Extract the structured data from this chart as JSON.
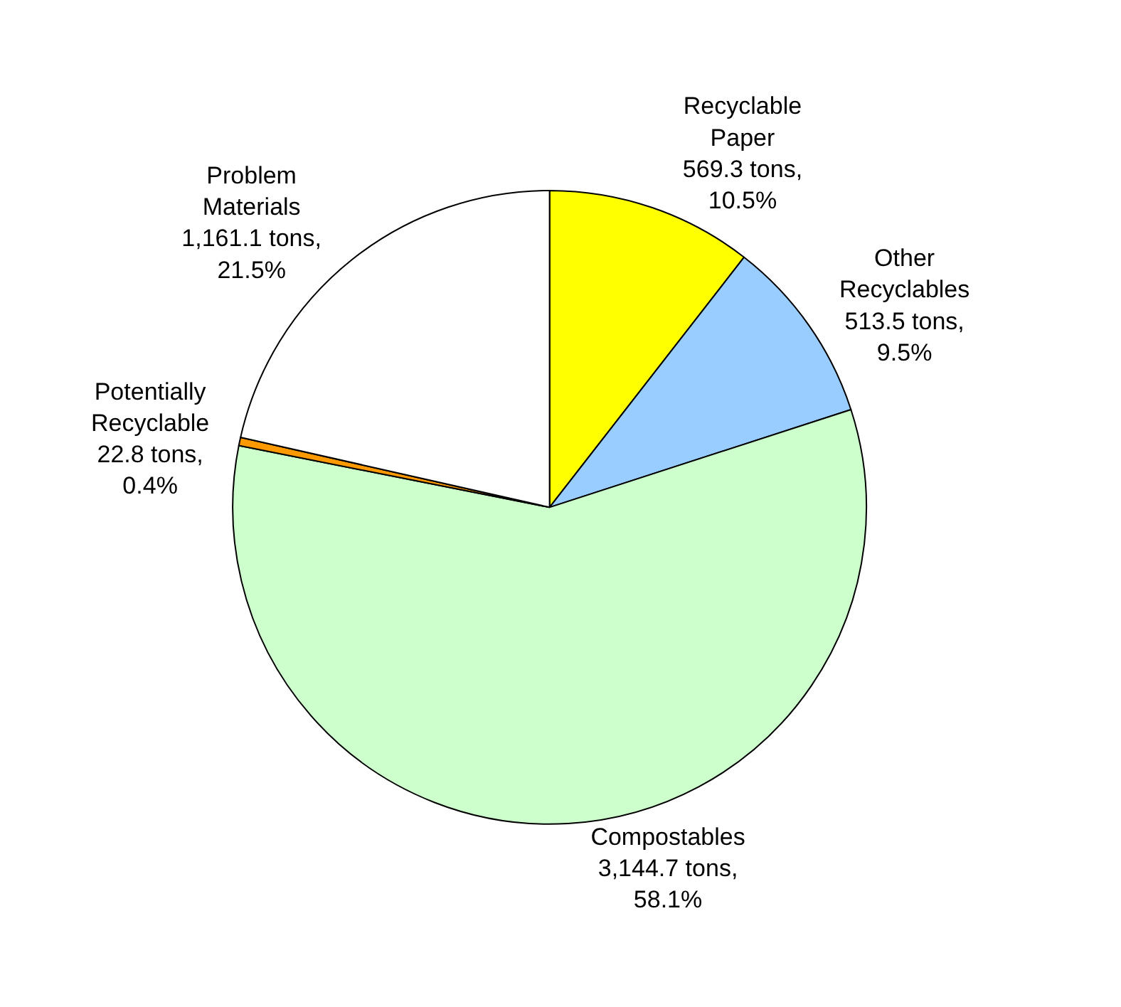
{
  "chart_data": {
    "type": "pie",
    "categories": [
      "Recyclable Paper",
      "Other Recyclables",
      "Compostables",
      "Potentially Recyclable",
      "Problem Materials"
    ],
    "values": [
      569.3,
      513.5,
      3144.7,
      22.8,
      1161.1
    ],
    "value_labels": [
      "569.3 tons, 10.5%",
      "513.5 tons, 9.5%",
      "3,144.7 tons, 58.1%",
      "22.8 tons, 0.4%",
      "1,161.1 tons, 21.5%"
    ],
    "colors": [
      "#ffff00",
      "#99ccff",
      "#ccffcc",
      "#ff9900",
      "#ffffff"
    ],
    "legend": false
  }
}
